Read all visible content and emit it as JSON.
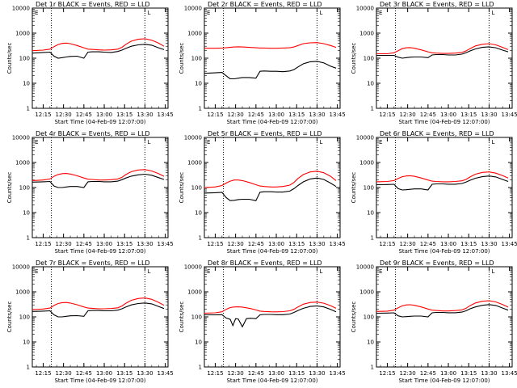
{
  "figure": {
    "series_colors": {
      "events": "#000000",
      "lld": "#ff0000"
    },
    "marker_letters": [
      "E",
      "L"
    ]
  },
  "chart_data": [
    {
      "type": "line",
      "title": "Det 1r BLACK = Events, RED = LLD",
      "xlabel": "Start Time (04-Feb-09 12:07:00)",
      "ylabel": "Counts/sec",
      "x_ticks": [
        "12:15",
        "12:30",
        "12:45",
        "13:00",
        "13:15",
        "13:30",
        "13:45"
      ],
      "y_ticks": [
        "1",
        "10",
        "100",
        "1000",
        "10000"
      ],
      "ylim": [
        1,
        10000
      ],
      "log_y": true,
      "vlines": [
        "12:21",
        "13:30"
      ],
      "x": [
        "12:07",
        "12:15",
        "12:20",
        "12:23",
        "12:26",
        "12:29",
        "12:32",
        "12:35",
        "12:40",
        "12:45",
        "12:48",
        "12:51",
        "12:56",
        "13:00",
        "13:05",
        "13:10",
        "13:13",
        "13:16",
        "13:20",
        "13:25",
        "13:30",
        "13:35",
        "13:40",
        "13:44"
      ],
      "series": [
        {
          "name": "Events",
          "values": [
            160,
            170,
            175,
            120,
            100,
            105,
            112,
            118,
            120,
            100,
            175,
            180,
            180,
            175,
            170,
            185,
            210,
            250,
            300,
            340,
            360,
            330,
            260,
            220
          ]
        },
        {
          "name": "LLD",
          "values": [
            200,
            210,
            230,
            290,
            350,
            390,
            400,
            380,
            320,
            260,
            230,
            225,
            215,
            210,
            215,
            230,
            270,
            360,
            480,
            570,
            600,
            520,
            400,
            300
          ]
        }
      ]
    },
    {
      "type": "line",
      "title": "Det 2r BLACK = Events, RED = LLD",
      "xlabel": "Start Time (04-Feb-09 12:07:00)",
      "ylabel": "Counts/sec",
      "x_ticks": [
        "12:15",
        "12:30",
        "12:45",
        "13:00",
        "13:15",
        "13:30",
        "13:45"
      ],
      "y_ticks": [
        "1",
        "10",
        "100",
        "1000",
        "10000"
      ],
      "ylim": [
        1,
        10000
      ],
      "log_y": true,
      "vlines": [
        "12:21",
        "13:30"
      ],
      "x": [
        "12:07",
        "12:15",
        "12:20",
        "12:23",
        "12:26",
        "12:29",
        "12:32",
        "12:35",
        "12:40",
        "12:45",
        "12:48",
        "12:51",
        "12:56",
        "13:00",
        "13:05",
        "13:10",
        "13:13",
        "13:16",
        "13:20",
        "13:25",
        "13:30",
        "13:35",
        "13:40",
        "13:44"
      ],
      "series": [
        {
          "name": "Events",
          "values": [
            25,
            26,
            27,
            20,
            15,
            15,
            16,
            17,
            17,
            16,
            30,
            31,
            30,
            30,
            29,
            31,
            35,
            45,
            60,
            72,
            75,
            65,
            48,
            40
          ]
        },
        {
          "name": "LLD",
          "values": [
            250,
            250,
            255,
            260,
            270,
            280,
            285,
            280,
            270,
            260,
            255,
            255,
            250,
            250,
            255,
            260,
            280,
            320,
            380,
            410,
            420,
            380,
            320,
            270
          ]
        }
      ]
    },
    {
      "type": "line",
      "title": "Det 3r BLACK = Events, RED = LLD",
      "xlabel": "Start Time (04-Feb-09 12:07:00)",
      "ylabel": "Counts/sec",
      "x_ticks": [
        "12:15",
        "12:30",
        "12:45",
        "13:00",
        "13:15",
        "13:30",
        "13:45"
      ],
      "y_ticks": [
        "1",
        "10",
        "100",
        "1000",
        "10000"
      ],
      "ylim": [
        1,
        10000
      ],
      "log_y": true,
      "vlines": [
        "12:21",
        "13:30"
      ],
      "x": [
        "12:07",
        "12:15",
        "12:20",
        "12:23",
        "12:26",
        "12:29",
        "12:32",
        "12:35",
        "12:40",
        "12:45",
        "12:48",
        "12:51",
        "12:56",
        "13:00",
        "13:05",
        "13:10",
        "13:13",
        "13:16",
        "13:20",
        "13:25",
        "13:30",
        "13:35",
        "13:40",
        "13:44"
      ],
      "series": [
        {
          "name": "Events",
          "values": [
            130,
            130,
            130,
            110,
            100,
            105,
            110,
            112,
            112,
            105,
            135,
            140,
            140,
            135,
            135,
            145,
            165,
            195,
            235,
            270,
            285,
            260,
            210,
            180
          ]
        },
        {
          "name": "LLD",
          "values": [
            150,
            150,
            165,
            200,
            240,
            260,
            265,
            250,
            215,
            180,
            165,
            160,
            155,
            155,
            160,
            170,
            195,
            240,
            310,
            360,
            380,
            340,
            270,
            220
          ]
        }
      ]
    },
    {
      "type": "line",
      "title": "Det 4r BLACK = Events, RED = LLD",
      "xlabel": "Start Time (04-Feb-09 12:07:00)",
      "ylabel": "Counts/sec",
      "x_ticks": [
        "12:15",
        "12:30",
        "12:45",
        "13:00",
        "13:15",
        "13:30",
        "13:45"
      ],
      "y_ticks": [
        "1",
        "10",
        "100",
        "1000",
        "10000"
      ],
      "ylim": [
        1,
        10000
      ],
      "log_y": true,
      "vlines": [
        "12:21",
        "13:30"
      ],
      "x": [
        "12:07",
        "12:15",
        "12:20",
        "12:23",
        "12:26",
        "12:29",
        "12:32",
        "12:35",
        "12:40",
        "12:45",
        "12:48",
        "12:51",
        "12:56",
        "13:00",
        "13:05",
        "13:10",
        "13:13",
        "13:16",
        "13:20",
        "13:25",
        "13:30",
        "13:35",
        "13:40",
        "13:44"
      ],
      "series": [
        {
          "name": "Events",
          "values": [
            165,
            170,
            175,
            115,
            100,
            100,
            105,
            110,
            110,
            100,
            170,
            175,
            175,
            170,
            170,
            180,
            205,
            240,
            285,
            320,
            340,
            310,
            250,
            210
          ]
        },
        {
          "name": "LLD",
          "values": [
            190,
            200,
            220,
            280,
            330,
            360,
            365,
            345,
            295,
            240,
            215,
            210,
            200,
            200,
            205,
            220,
            255,
            330,
            430,
            500,
            520,
            460,
            360,
            280
          ]
        }
      ]
    },
    {
      "type": "line",
      "title": "Det 5r BLACK = Events, RED = LLD",
      "xlabel": "Start Time (04-Feb-09 12:07:00)",
      "ylabel": "Counts/sec",
      "x_ticks": [
        "12:15",
        "12:30",
        "12:45",
        "13:00",
        "13:15",
        "13:30",
        "13:45"
      ],
      "y_ticks": [
        "1",
        "10",
        "100",
        "1000",
        "10000"
      ],
      "ylim": [
        1,
        10000
      ],
      "log_y": true,
      "vlines": [
        "12:21",
        "13:30"
      ],
      "x": [
        "12:07",
        "12:15",
        "12:20",
        "12:23",
        "12:26",
        "12:29",
        "12:32",
        "12:35",
        "12:40",
        "12:45",
        "12:48",
        "12:51",
        "12:56",
        "13:00",
        "13:05",
        "13:10",
        "13:13",
        "13:16",
        "13:20",
        "13:25",
        "13:30",
        "13:35",
        "13:40",
        "13:44"
      ],
      "series": [
        {
          "name": "Events",
          "values": [
            60,
            62,
            64,
            40,
            30,
            31,
            33,
            34,
            34,
            30,
            65,
            68,
            68,
            66,
            66,
            72,
            90,
            120,
            170,
            220,
            240,
            210,
            150,
            110
          ]
        },
        {
          "name": "LLD",
          "values": [
            100,
            105,
            120,
            150,
            180,
            200,
            200,
            190,
            160,
            130,
            115,
            110,
            105,
            105,
            110,
            125,
            160,
            230,
            330,
            420,
            450,
            390,
            280,
            190
          ]
        }
      ]
    },
    {
      "type": "line",
      "title": "Det 6r BLACK = Events, RED = LLD",
      "xlabel": "Start Time (04-Feb-09 12:07:00)",
      "ylabel": "Counts/sec",
      "x_ticks": [
        "12:15",
        "12:30",
        "12:45",
        "13:00",
        "13:15",
        "13:30",
        "13:45"
      ],
      "y_ticks": [
        "1",
        "10",
        "100",
        "1000",
        "10000"
      ],
      "ylim": [
        1,
        10000
      ],
      "log_y": true,
      "vlines": [
        "12:21",
        "13:30"
      ],
      "x": [
        "12:07",
        "12:15",
        "12:20",
        "12:23",
        "12:26",
        "12:29",
        "12:32",
        "12:35",
        "12:40",
        "12:45",
        "12:48",
        "12:51",
        "12:56",
        "13:00",
        "13:05",
        "13:10",
        "13:13",
        "13:16",
        "13:20",
        "13:25",
        "13:30",
        "13:35",
        "13:40",
        "13:44"
      ],
      "series": [
        {
          "name": "Events",
          "values": [
            130,
            132,
            135,
            90,
            80,
            82,
            85,
            88,
            88,
            80,
            135,
            140,
            140,
            136,
            136,
            145,
            165,
            195,
            235,
            270,
            290,
            265,
            210,
            175
          ]
        },
        {
          "name": "LLD",
          "values": [
            170,
            175,
            190,
            230,
            270,
            290,
            295,
            280,
            240,
            200,
            180,
            175,
            170,
            170,
            175,
            185,
            210,
            265,
            340,
            400,
            420,
            375,
            300,
            240
          ]
        }
      ]
    },
    {
      "type": "line",
      "title": "Det 7r BLACK = Events, RED = LLD",
      "xlabel": "Start Time (04-Feb-09 12:07:00)",
      "ylabel": "Counts/sec",
      "x_ticks": [
        "12:15",
        "12:30",
        "12:45",
        "13:00",
        "13:15",
        "13:30",
        "13:45"
      ],
      "y_ticks": [
        "1",
        "10",
        "100",
        "1000",
        "10000"
      ],
      "ylim": [
        1,
        10000
      ],
      "log_y": true,
      "vlines": [
        "12:21",
        "13:30"
      ],
      "x": [
        "12:07",
        "12:15",
        "12:20",
        "12:23",
        "12:26",
        "12:29",
        "12:32",
        "12:35",
        "12:40",
        "12:45",
        "12:48",
        "12:51",
        "12:56",
        "13:00",
        "13:05",
        "13:10",
        "13:13",
        "13:16",
        "13:20",
        "13:25",
        "13:30",
        "13:35",
        "13:40",
        "13:44"
      ],
      "series": [
        {
          "name": "Events",
          "values": [
            165,
            170,
            175,
            120,
            100,
            100,
            105,
            110,
            112,
            105,
            175,
            180,
            180,
            175,
            175,
            185,
            210,
            250,
            300,
            340,
            360,
            330,
            260,
            215
          ]
        },
        {
          "name": "LLD",
          "values": [
            195,
            205,
            225,
            285,
            340,
            370,
            375,
            355,
            305,
            250,
            225,
            220,
            210,
            210,
            215,
            230,
            270,
            350,
            460,
            540,
            570,
            500,
            380,
            290
          ]
        }
      ]
    },
    {
      "type": "line",
      "title": "Det 8r BLACK = Events, RED = LLD",
      "xlabel": "Start Time (04-Feb-09 12:07:00)",
      "ylabel": "Counts/sec",
      "x_ticks": [
        "12:15",
        "12:30",
        "12:45",
        "13:00",
        "13:15",
        "13:30",
        "13:45"
      ],
      "y_ticks": [
        "1",
        "10",
        "100",
        "1000",
        "10000"
      ],
      "ylim": [
        1,
        10000
      ],
      "log_y": true,
      "vlines": [
        "12:21",
        "13:30"
      ],
      "x": [
        "12:07",
        "12:15",
        "12:20",
        "12:23",
        "12:26",
        "12:28",
        "12:30",
        "12:32",
        "12:35",
        "12:38",
        "12:41",
        "12:45",
        "12:48",
        "12:51",
        "12:56",
        "13:00",
        "13:05",
        "13:10",
        "13:13",
        "13:16",
        "13:20",
        "13:25",
        "13:30",
        "13:35",
        "13:40",
        "13:44"
      ],
      "series": [
        {
          "name": "Events",
          "values": [
            120,
            120,
            122,
            90,
            80,
            45,
            85,
            82,
            40,
            85,
            88,
            85,
            120,
            125,
            125,
            122,
            122,
            130,
            150,
            180,
            220,
            260,
            275,
            250,
            200,
            160
          ]
        },
        {
          "name": "LLD",
          "values": [
            140,
            145,
            160,
            200,
            235,
            245,
            250,
            252,
            245,
            230,
            215,
            190,
            170,
            165,
            160,
            158,
            162,
            175,
            200,
            250,
            320,
            375,
            390,
            350,
            280,
            220
          ]
        }
      ]
    },
    {
      "type": "line",
      "title": "Det 9r BLACK = Events, RED = LLD",
      "xlabel": "Start Time (04-Feb-09 12:07:00)",
      "ylabel": "Counts/sec",
      "x_ticks": [
        "12:15",
        "12:30",
        "12:45",
        "13:00",
        "13:15",
        "13:30",
        "13:45"
      ],
      "y_ticks": [
        "1",
        "10",
        "100",
        "1000",
        "10000"
      ],
      "ylim": [
        1,
        10000
      ],
      "log_y": true,
      "vlines": [
        "12:21",
        "13:30"
      ],
      "x": [
        "12:07",
        "12:15",
        "12:20",
        "12:23",
        "12:26",
        "12:29",
        "12:32",
        "12:35",
        "12:40",
        "12:45",
        "12:48",
        "12:51",
        "12:56",
        "13:00",
        "13:05",
        "13:10",
        "13:13",
        "13:16",
        "13:20",
        "13:25",
        "13:30",
        "13:35",
        "13:40",
        "13:44"
      ],
      "series": [
        {
          "name": "Events",
          "values": [
            140,
            142,
            145,
            110,
            100,
            102,
            105,
            108,
            108,
            100,
            145,
            150,
            150,
            146,
            146,
            155,
            175,
            210,
            250,
            290,
            310,
            285,
            225,
            185
          ]
        },
        {
          "name": "LLD",
          "values": [
            165,
            170,
            185,
            230,
            275,
            300,
            305,
            290,
            250,
            205,
            185,
            180,
            172,
            172,
            178,
            190,
            220,
            280,
            360,
            420,
            440,
            395,
            310,
            245
          ]
        }
      ]
    }
  ]
}
